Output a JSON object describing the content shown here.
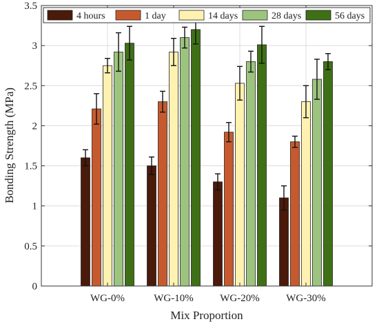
{
  "chart_data": {
    "type": "bar",
    "xlabel": "Mix Proportion",
    "ylabel": "Bonding Strength (MPa)",
    "ylim": [
      0,
      3.5
    ],
    "yticks": [
      "0",
      "0.5",
      "1",
      "1.5",
      "2",
      "2.5",
      "3",
      "3.5"
    ],
    "categories": [
      "WG-0%",
      "WG-10%",
      "WG-20%",
      "WG-30%"
    ],
    "grid": true,
    "legend_position": "top",
    "series": [
      {
        "name": "4 hours",
        "color": "#4a1a0a",
        "values": [
          1.6,
          1.5,
          1.3,
          1.1
        ],
        "errors": [
          0.1,
          0.11,
          0.1,
          0.15
        ]
      },
      {
        "name": "1 day",
        "color": "#c65a2e",
        "values": [
          2.21,
          2.3,
          1.92,
          1.8
        ],
        "errors": [
          0.19,
          0.13,
          0.12,
          0.07
        ]
      },
      {
        "name": "14 days",
        "color": "#fff2b0",
        "values": [
          2.75,
          2.92,
          2.53,
          2.3
        ],
        "errors": [
          0.09,
          0.17,
          0.21,
          0.2
        ]
      },
      {
        "name": "28 days",
        "color": "#9dc47f",
        "values": [
          2.92,
          3.1,
          2.8,
          2.58
        ],
        "errors": [
          0.24,
          0.13,
          0.13,
          0.25
        ]
      },
      {
        "name": "56 days",
        "color": "#3f7016",
        "values": [
          3.03,
          3.2,
          3.01,
          2.8
        ],
        "errors": [
          0.21,
          0.18,
          0.23,
          0.1
        ]
      }
    ]
  }
}
